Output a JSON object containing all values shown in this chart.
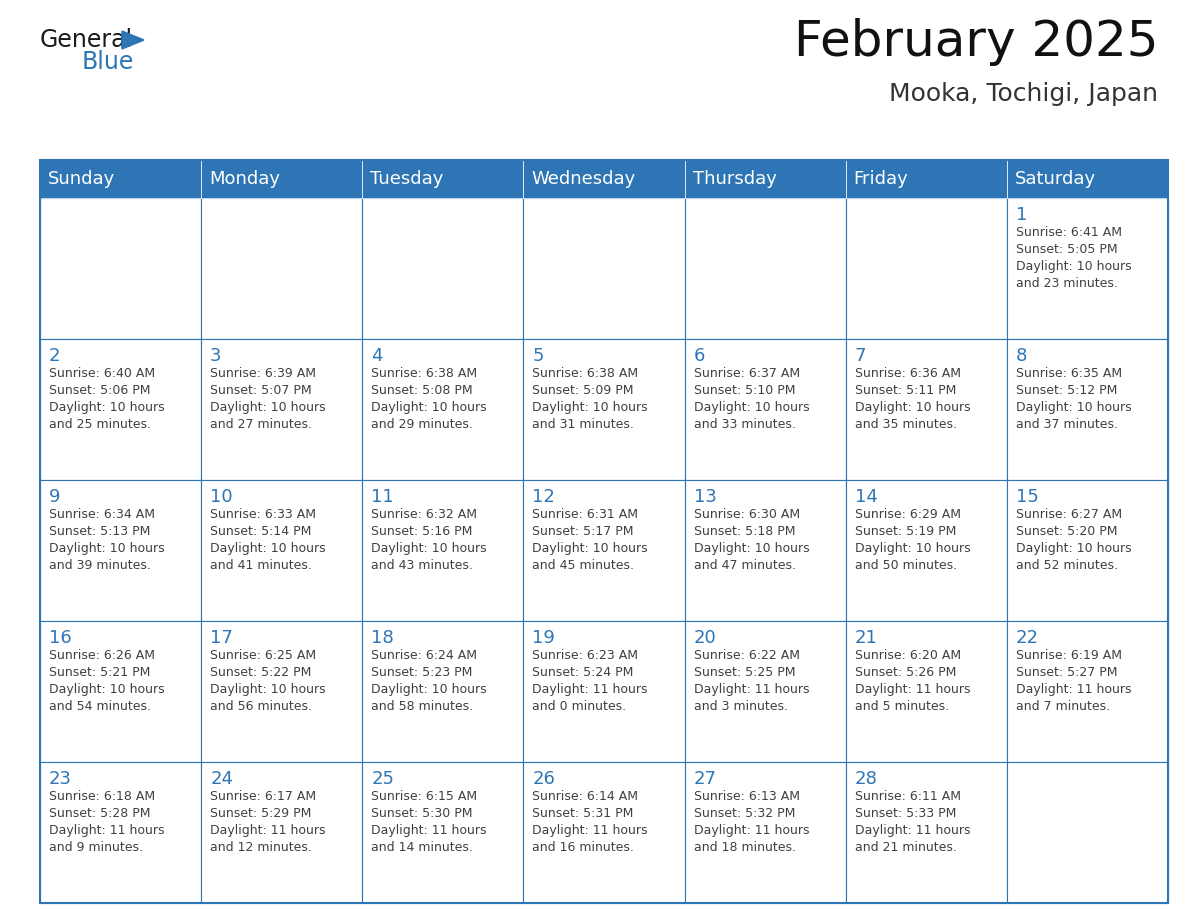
{
  "title": "February 2025",
  "subtitle": "Mooka, Tochigi, Japan",
  "header_bg": "#2E75B6",
  "header_text_color": "#FFFFFF",
  "cell_bg": "#FFFFFF",
  "day_number_color": "#2E75B6",
  "info_text_color": "#404040",
  "border_color": "#2E75B6",
  "days_of_week": [
    "Sunday",
    "Monday",
    "Tuesday",
    "Wednesday",
    "Thursday",
    "Friday",
    "Saturday"
  ],
  "weeks": [
    [
      {
        "day": null,
        "info": ""
      },
      {
        "day": null,
        "info": ""
      },
      {
        "day": null,
        "info": ""
      },
      {
        "day": null,
        "info": ""
      },
      {
        "day": null,
        "info": ""
      },
      {
        "day": null,
        "info": ""
      },
      {
        "day": 1,
        "info": "Sunrise: 6:41 AM\nSunset: 5:05 PM\nDaylight: 10 hours\nand 23 minutes."
      }
    ],
    [
      {
        "day": 2,
        "info": "Sunrise: 6:40 AM\nSunset: 5:06 PM\nDaylight: 10 hours\nand 25 minutes."
      },
      {
        "day": 3,
        "info": "Sunrise: 6:39 AM\nSunset: 5:07 PM\nDaylight: 10 hours\nand 27 minutes."
      },
      {
        "day": 4,
        "info": "Sunrise: 6:38 AM\nSunset: 5:08 PM\nDaylight: 10 hours\nand 29 minutes."
      },
      {
        "day": 5,
        "info": "Sunrise: 6:38 AM\nSunset: 5:09 PM\nDaylight: 10 hours\nand 31 minutes."
      },
      {
        "day": 6,
        "info": "Sunrise: 6:37 AM\nSunset: 5:10 PM\nDaylight: 10 hours\nand 33 minutes."
      },
      {
        "day": 7,
        "info": "Sunrise: 6:36 AM\nSunset: 5:11 PM\nDaylight: 10 hours\nand 35 minutes."
      },
      {
        "day": 8,
        "info": "Sunrise: 6:35 AM\nSunset: 5:12 PM\nDaylight: 10 hours\nand 37 minutes."
      }
    ],
    [
      {
        "day": 9,
        "info": "Sunrise: 6:34 AM\nSunset: 5:13 PM\nDaylight: 10 hours\nand 39 minutes."
      },
      {
        "day": 10,
        "info": "Sunrise: 6:33 AM\nSunset: 5:14 PM\nDaylight: 10 hours\nand 41 minutes."
      },
      {
        "day": 11,
        "info": "Sunrise: 6:32 AM\nSunset: 5:16 PM\nDaylight: 10 hours\nand 43 minutes."
      },
      {
        "day": 12,
        "info": "Sunrise: 6:31 AM\nSunset: 5:17 PM\nDaylight: 10 hours\nand 45 minutes."
      },
      {
        "day": 13,
        "info": "Sunrise: 6:30 AM\nSunset: 5:18 PM\nDaylight: 10 hours\nand 47 minutes."
      },
      {
        "day": 14,
        "info": "Sunrise: 6:29 AM\nSunset: 5:19 PM\nDaylight: 10 hours\nand 50 minutes."
      },
      {
        "day": 15,
        "info": "Sunrise: 6:27 AM\nSunset: 5:20 PM\nDaylight: 10 hours\nand 52 minutes."
      }
    ],
    [
      {
        "day": 16,
        "info": "Sunrise: 6:26 AM\nSunset: 5:21 PM\nDaylight: 10 hours\nand 54 minutes."
      },
      {
        "day": 17,
        "info": "Sunrise: 6:25 AM\nSunset: 5:22 PM\nDaylight: 10 hours\nand 56 minutes."
      },
      {
        "day": 18,
        "info": "Sunrise: 6:24 AM\nSunset: 5:23 PM\nDaylight: 10 hours\nand 58 minutes."
      },
      {
        "day": 19,
        "info": "Sunrise: 6:23 AM\nSunset: 5:24 PM\nDaylight: 11 hours\nand 0 minutes."
      },
      {
        "day": 20,
        "info": "Sunrise: 6:22 AM\nSunset: 5:25 PM\nDaylight: 11 hours\nand 3 minutes."
      },
      {
        "day": 21,
        "info": "Sunrise: 6:20 AM\nSunset: 5:26 PM\nDaylight: 11 hours\nand 5 minutes."
      },
      {
        "day": 22,
        "info": "Sunrise: 6:19 AM\nSunset: 5:27 PM\nDaylight: 11 hours\nand 7 minutes."
      }
    ],
    [
      {
        "day": 23,
        "info": "Sunrise: 6:18 AM\nSunset: 5:28 PM\nDaylight: 11 hours\nand 9 minutes."
      },
      {
        "day": 24,
        "info": "Sunrise: 6:17 AM\nSunset: 5:29 PM\nDaylight: 11 hours\nand 12 minutes."
      },
      {
        "day": 25,
        "info": "Sunrise: 6:15 AM\nSunset: 5:30 PM\nDaylight: 11 hours\nand 14 minutes."
      },
      {
        "day": 26,
        "info": "Sunrise: 6:14 AM\nSunset: 5:31 PM\nDaylight: 11 hours\nand 16 minutes."
      },
      {
        "day": 27,
        "info": "Sunrise: 6:13 AM\nSunset: 5:32 PM\nDaylight: 11 hours\nand 18 minutes."
      },
      {
        "day": 28,
        "info": "Sunrise: 6:11 AM\nSunset: 5:33 PM\nDaylight: 11 hours\nand 21 minutes."
      },
      {
        "day": null,
        "info": ""
      }
    ]
  ],
  "logo_text_general": "General",
  "logo_text_blue": "Blue",
  "logo_color_general": "#1a1a1a",
  "logo_color_blue": "#2E75B6",
  "logo_triangle_color": "#2E75B6",
  "title_fontsize": 36,
  "subtitle_fontsize": 18,
  "header_fontsize": 13,
  "day_num_fontsize": 13,
  "info_fontsize": 9
}
